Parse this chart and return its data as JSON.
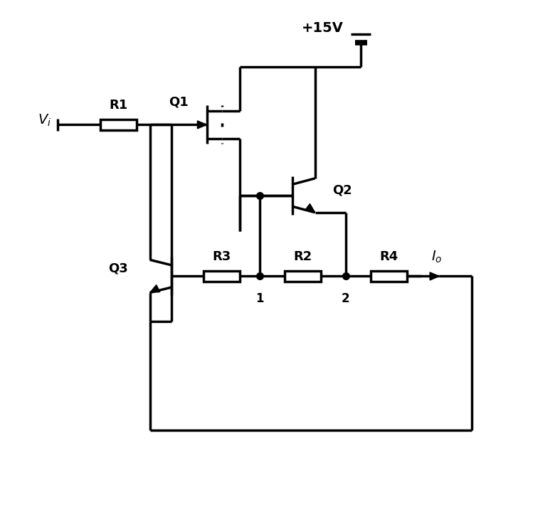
{
  "bg_color": "#ffffff",
  "line_color": "#000000",
  "lw": 2.5,
  "fig_width": 7.87,
  "fig_height": 7.13,
  "xlim": [
    0,
    10
  ],
  "ylim": [
    0,
    10
  ],
  "vi_label": "$V_i$",
  "v15_label": "+15V",
  "io_label": "$I_o$",
  "q1_label": "Q1",
  "q2_label": "Q2",
  "q3_label": "Q3",
  "r1_label": "R1",
  "r2_label": "R2",
  "r3_label": "R3",
  "r4_label": "R4",
  "node1_label": "1",
  "node2_label": "2"
}
